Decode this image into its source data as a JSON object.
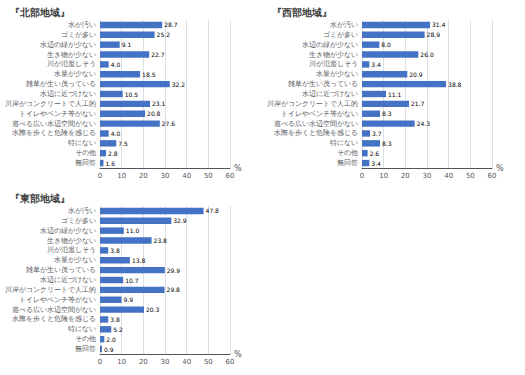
{
  "chart_data": [
    {
      "type": "bar",
      "title": "『北部地域』",
      "orientation": "horizontal",
      "categories": [
        "水が汚い",
        "ゴミが多い",
        "水辺の緑が少ない",
        "生き物が少ない",
        "川が氾濫しそう",
        "水量が少ない",
        "雑草が生い茂っている",
        "水辺に近づけない",
        "川岸がコンクリートで人工的",
        "トイレやベンチ等がない",
        "遊べる広い水辺空間がない",
        "水際を歩くと危険を感じる",
        "特にない",
        "その他",
        "無回答"
      ],
      "values": [
        28.7,
        25.2,
        9.1,
        22.7,
        4.0,
        18.5,
        32.2,
        10.5,
        23.1,
        20.8,
        27.6,
        4.0,
        7.5,
        2.8,
        1.6
      ],
      "value_labels": [
        "28.7",
        "25.2",
        "9.1",
        "22.7",
        "4.0",
        "18.5",
        "32.2",
        "10.5",
        "23.1",
        "20.8",
        "27.6",
        "4.0",
        "7.5",
        "2.8",
        "1.6"
      ],
      "color": "#4472C4",
      "xlabel": "%",
      "xlim": [
        0,
        60
      ],
      "xticks": [
        0,
        10,
        20,
        30,
        40,
        50,
        60
      ],
      "grid": true,
      "data_labels": true
    },
    {
      "type": "bar",
      "title": "『西部地域』",
      "orientation": "horizontal",
      "categories": [
        "水が汚い",
        "ゴミが多い",
        "水辺の緑が少ない",
        "生き物が少ない",
        "川が氾濫しそう",
        "水量が少ない",
        "雑草が生い茂っている",
        "水辺に近づけない",
        "川岸がコンクリートで人工的",
        "トイレやベンチ等がない",
        "遊べる広い水辺空間がない",
        "水際を歩くと危険を感じる",
        "特にない",
        "その他",
        "無回答"
      ],
      "values": [
        31.4,
        28.9,
        8.0,
        26.0,
        3.4,
        20.9,
        38.8,
        11.1,
        21.7,
        8.3,
        24.3,
        3.7,
        8.3,
        2.6,
        3.4
      ],
      "value_labels": [
        "31.4",
        "28.9",
        "8.0",
        "26.0",
        "3.4",
        "20.9",
        "38.8",
        "11.1",
        "21.7",
        "8.3",
        "24.3",
        "3.7",
        "8.3",
        "2.6",
        "3.4"
      ],
      "color": "#4472C4",
      "xlabel": "%",
      "xlim": [
        0,
        60
      ],
      "xticks": [
        0,
        10,
        20,
        30,
        40,
        50,
        60
      ],
      "grid": true,
      "data_labels": true
    },
    {
      "type": "bar",
      "title": "『東部地域』",
      "orientation": "horizontal",
      "categories": [
        "水が汚い",
        "ゴミが多い",
        "水辺の緑が少ない",
        "生き物が少ない",
        "川が氾濫しそう",
        "水量が少ない",
        "雑草が生い茂っている",
        "水辺に近づけない",
        "川岸がコンクリートで人工的",
        "トイレやベンチ等がない",
        "遊べる広い水辺空間がない",
        "水際を歩くと危険を感じる",
        "特にない",
        "その他",
        "無回答"
      ],
      "values": [
        47.8,
        32.9,
        11.0,
        23.8,
        3.8,
        13.8,
        29.9,
        10.7,
        29.8,
        9.9,
        20.3,
        3.8,
        5.2,
        2.0,
        0.9
      ],
      "value_labels": [
        "47.8",
        "32.9",
        "11.0",
        "23.8",
        "3.8",
        "13.8",
        "29.9",
        "10.7",
        "29.8",
        "9.9",
        "20.3",
        "3.8",
        "5.2",
        "2.0",
        "0.9"
      ],
      "color": "#4472C4",
      "xlabel": "%",
      "xlim": [
        0,
        60
      ],
      "xticks": [
        0,
        10,
        20,
        30,
        40,
        50,
        60
      ],
      "grid": true,
      "data_labels": true
    }
  ]
}
